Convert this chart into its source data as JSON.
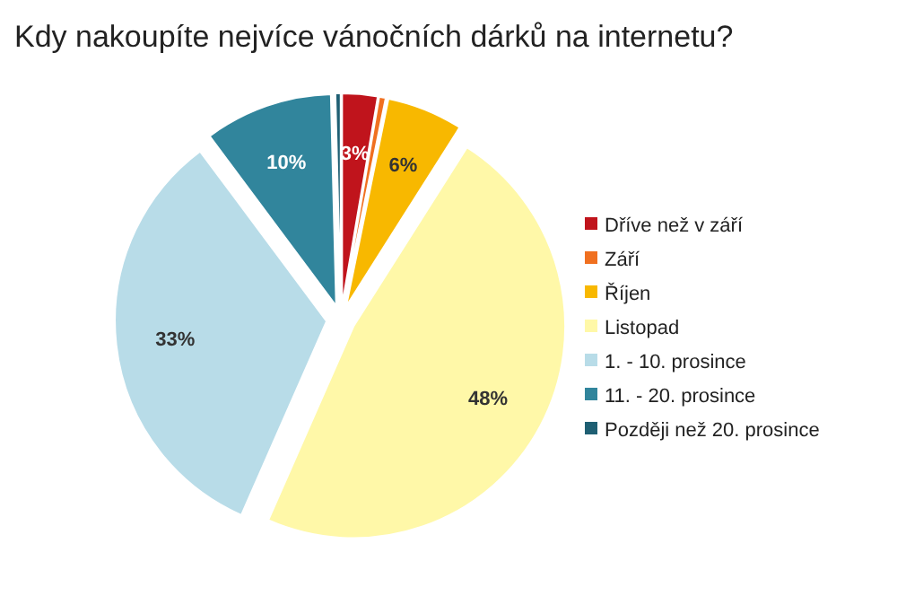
{
  "chart_data": {
    "type": "pie",
    "title": "Kdy nakoupíte nejvíce vánočních dárků na internetu?",
    "categories": [
      "Dříve než v září",
      "Září",
      "Říjen",
      "Listopad",
      "1. - 10. prosince",
      "11. - 20. prosince",
      "Později než 20. prosince"
    ],
    "values": [
      2.7,
      0.5,
      5.8,
      47.6,
      33.2,
      9.8,
      0.4
    ],
    "value_labels": [
      "3%",
      null,
      "6%",
      "48%",
      "33%",
      "10%",
      null
    ],
    "colors": [
      "#c0141c",
      "#f07020",
      "#f8b800",
      "#fff8a8",
      "#b8dce8",
      "#31859c",
      "#1f5f73"
    ],
    "legend": "right"
  }
}
